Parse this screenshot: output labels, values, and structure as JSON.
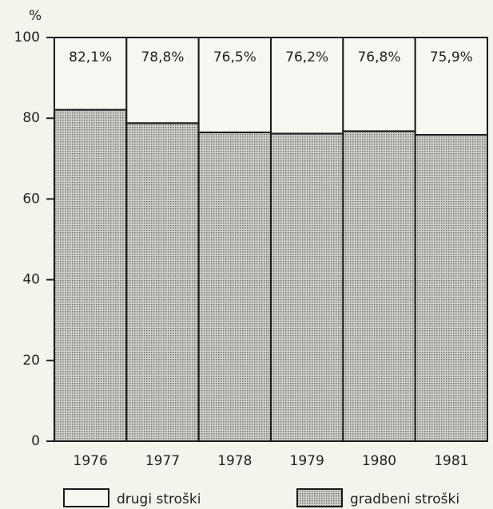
{
  "chart_data": {
    "type": "stacked_bar",
    "y_label": "%",
    "categories": [
      "1976",
      "1977",
      "1978",
      "1979",
      "1980",
      "1981"
    ],
    "series": [
      {
        "name": "drugi stroški",
        "color": "#f7f6f0",
        "values": [
          17.9,
          21.2,
          23.5,
          23.8,
          23.2,
          24.1
        ]
      },
      {
        "name": "gradbeni stroški",
        "color": "#b9b9b9",
        "values": [
          82.1,
          78.8,
          76.5,
          76.2,
          76.8,
          75.9
        ],
        "value_labels": [
          "82,1%",
          "78,8%",
          "76,5%",
          "76,2%",
          "76,8%",
          "75,9%"
        ]
      }
    ],
    "ylim": [
      0,
      100
    ],
    "yticks": [
      0,
      20,
      40,
      60,
      80,
      100
    ]
  }
}
